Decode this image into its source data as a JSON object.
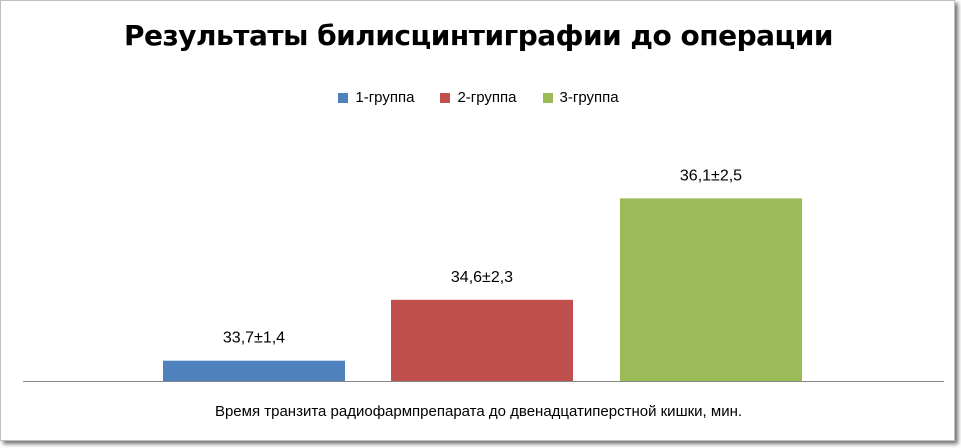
{
  "chart_data": {
    "type": "bar",
    "title": "Результаты билисцинтиграфии до операции",
    "xlabel": "Время транзита радиофармпрепарата  до двенадцатиперстной кишки, мин.",
    "ylabel": "",
    "legend_position": "top",
    "grid": false,
    "ylim": [
      33.4,
      36.8
    ],
    "series": [
      {
        "name": "1-группа",
        "value": 33.7,
        "label": "33,7±1,4",
        "color": "#4f81bd"
      },
      {
        "name": "2-группа",
        "value": 34.6,
        "label": "34,6±2,3",
        "color": "#c0504d"
      },
      {
        "name": "3-группа",
        "value": 36.1,
        "label": "36,1±2,5",
        "color": "#9bbb59"
      }
    ]
  }
}
